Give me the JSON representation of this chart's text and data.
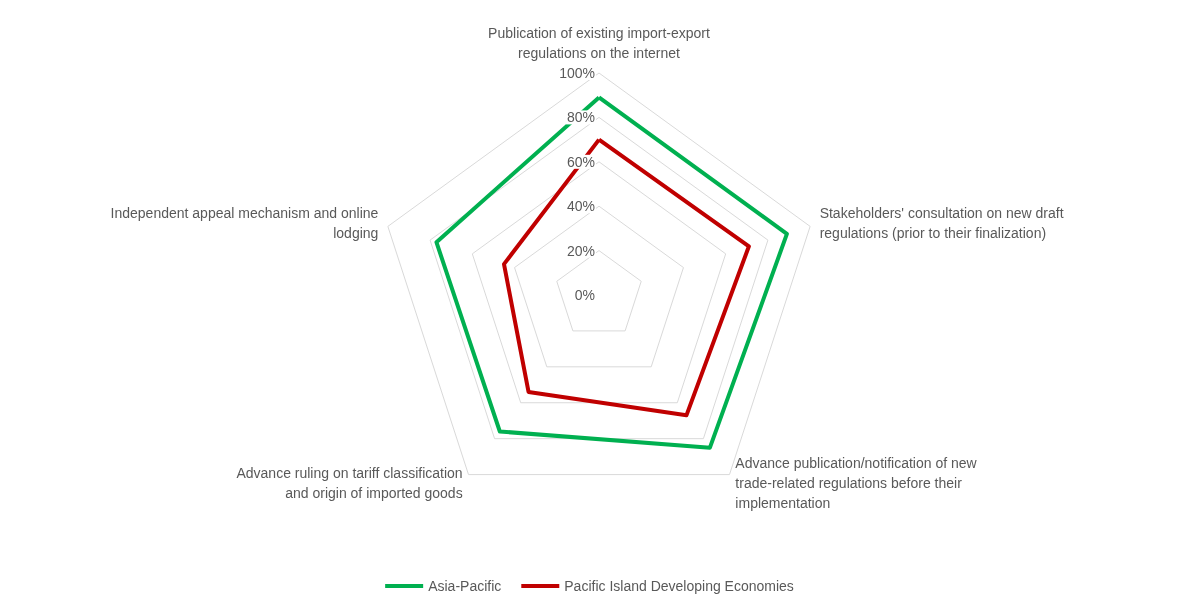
{
  "chart_data": {
    "type": "radar",
    "categories": [
      "Publication of existing import-export regulations on the internet",
      "Stakeholders' consultation on new draft regulations (prior to their finalization)",
      "Advance publication/notification of new trade-related regulations before their implementation",
      "Advance ruling on tariff classification and origin of imported goods",
      "Independent appeal mechanism and online lodging"
    ],
    "series": [
      {
        "name": "Asia-Pacific",
        "color": "#00b050",
        "values": [
          89,
          89,
          85,
          76,
          77
        ]
      },
      {
        "name": "Pacific Island Developing Economies",
        "color": "#c00000",
        "values": [
          70,
          71,
          67,
          54,
          45
        ]
      }
    ],
    "ylim": [
      0,
      100
    ],
    "yticks": [
      {
        "value": 0,
        "label": "0%"
      },
      {
        "value": 20,
        "label": "20%"
      },
      {
        "value": 40,
        "label": "40%"
      },
      {
        "value": 60,
        "label": "60%"
      },
      {
        "value": 80,
        "label": "80%"
      },
      {
        "value": 100,
        "label": "100%"
      }
    ],
    "legend": "bottom",
    "marker": "none",
    "line_style": "solid"
  }
}
